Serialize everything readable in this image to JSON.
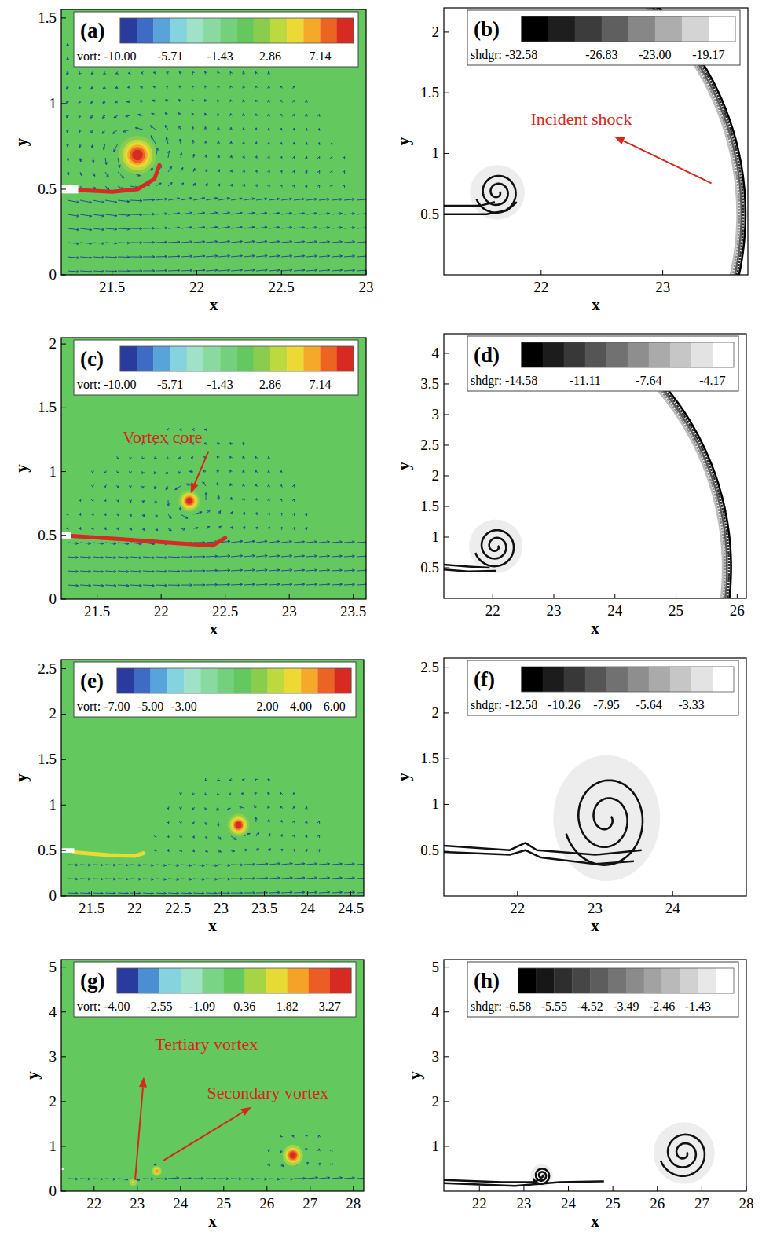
{
  "chart_data": [
    {
      "type": "contour",
      "title": "(a)",
      "xlabel": "x",
      "ylabel": "y",
      "xlim": [
        21.2,
        23
      ],
      "ylim": [
        0,
        1.55
      ],
      "xticks": [
        21.5,
        22,
        22.5,
        23
      ],
      "yticks": [
        0,
        0.5,
        1,
        1.5
      ],
      "colorbar": {
        "label": "vort:",
        "range": [
          -10,
          10
        ],
        "levels": 14,
        "colors": [
          "#2a3b9e",
          "#3e6cc4",
          "#57a3da",
          "#86d3e0",
          "#9fe2c8",
          "#8ad9a0",
          "#74d07c",
          "#63c95f",
          "#8acd4e",
          "#bcd93f",
          "#ecd934",
          "#f6a929",
          "#ec6424",
          "#d62a23"
        ],
        "ticks": [
          {
            "value": -10,
            "label": "-10.00"
          },
          -5.71,
          -1.43,
          2.86,
          7.14
        ]
      },
      "plate": {
        "x": 21.3,
        "y": 0.5
      },
      "shear_layer": {
        "peak": 9,
        "points": [
          [
            21.3,
            0.495
          ],
          [
            21.5,
            0.485
          ],
          [
            21.65,
            0.5
          ],
          [
            21.75,
            0.56
          ],
          [
            21.78,
            0.64
          ]
        ]
      },
      "vortices": [
        {
          "x": 21.65,
          "y": 0.7,
          "r": 0.08,
          "peak": 10
        }
      ],
      "annotations": []
    },
    {
      "type": "shadowgraph",
      "title": "(b)",
      "xlabel": "x",
      "ylabel": "y",
      "xlim": [
        21.2,
        23.7
      ],
      "ylim": [
        0,
        2.2
      ],
      "xticks": [
        22,
        23
      ],
      "yticks": [
        0.5,
        1,
        1.5,
        2
      ],
      "colorbar": {
        "label": "shdgr:",
        "range": [
          -32.58,
          -17.25
        ],
        "levels": 8,
        "colors": [
          "#000000",
          "#1e1e1e",
          "#3c3c3c",
          "#5f5f5f",
          "#878787",
          "#adadad",
          "#d4d4d4",
          "#ffffff"
        ],
        "ticks": [
          -32.58,
          -26.83,
          {
            "value": -23,
            "label": "-23.00"
          },
          -19.17
        ]
      },
      "shock": {
        "x0": 21.3,
        "y0": 0.5,
        "r": 2.38
      },
      "lines": [
        [
          [
            21.2,
            0.57
          ],
          [
            21.5,
            0.57
          ],
          [
            21.62,
            0.6
          ]
        ],
        [
          [
            21.2,
            0.5
          ],
          [
            21.55,
            0.5
          ],
          [
            21.72,
            0.53
          ],
          [
            21.8,
            0.6
          ]
        ]
      ],
      "vortices": [
        {
          "x": 21.64,
          "y": 0.68,
          "r": 0.18
        }
      ],
      "annotations": [
        {
          "text": "Incident shock",
          "x": 22.33,
          "y": 1.28,
          "arrow_from": [
            23.4,
            0.755
          ],
          "arrow_to": [
            22.6,
            1.14
          ]
        }
      ]
    },
    {
      "type": "contour",
      "title": "(c)",
      "xlabel": "x",
      "ylabel": "y",
      "xlim": [
        21.22,
        23.6
      ],
      "ylim": [
        0,
        2.05
      ],
      "xticks": [
        21.5,
        22,
        22.5,
        23,
        23.5
      ],
      "yticks": [
        0,
        0.5,
        1,
        1.5,
        2
      ],
      "colorbar": {
        "label": "vort:",
        "range": [
          -10,
          10
        ],
        "levels": 14,
        "colors": [
          "#2a3b9e",
          "#3e6cc4",
          "#57a3da",
          "#86d3e0",
          "#9fe2c8",
          "#8ad9a0",
          "#74d07c",
          "#63c95f",
          "#8acd4e",
          "#bcd93f",
          "#ecd934",
          "#f6a929",
          "#ec6424",
          "#d62a23"
        ],
        "ticks": [
          {
            "value": -10,
            "label": "-10.00"
          },
          -5.71,
          -1.43,
          2.86,
          7.14
        ]
      },
      "plate": {
        "x": 21.3,
        "y": 0.5
      },
      "shear_layer": {
        "peak": 9,
        "points": [
          [
            21.3,
            0.495
          ],
          [
            21.7,
            0.47
          ],
          [
            22.1,
            0.44
          ],
          [
            22.4,
            0.42
          ],
          [
            22.5,
            0.48
          ]
        ]
      },
      "vortices": [
        {
          "x": 22.22,
          "y": 0.77,
          "r": 0.06,
          "peak": 10
        }
      ],
      "annotations": [
        {
          "text": "Vortex core",
          "x": 22.01,
          "y": 1.27,
          "arrow_from": [
            22.37,
            1.16
          ],
          "arrow_to": [
            22.23,
            0.83
          ]
        }
      ]
    },
    {
      "type": "shadowgraph",
      "title": "(d)",
      "xlabel": "x",
      "ylabel": "y",
      "xlim": [
        21.2,
        26.15
      ],
      "ylim": [
        0,
        4.32
      ],
      "xticks": [
        22,
        23,
        24,
        25,
        26
      ],
      "yticks": [
        0.5,
        1,
        1.5,
        2,
        2.5,
        3,
        3.5,
        4
      ],
      "colorbar": {
        "label": "shdgr:",
        "range": [
          -14.58,
          -3.01
        ],
        "levels": 10,
        "colors": [
          "#000000",
          "#1c1c1c",
          "#383838",
          "#555555",
          "#717171",
          "#8e8e8e",
          "#aaaaaa",
          "#c6c6c6",
          "#e3e3e3",
          "#ffffff"
        ],
        "ticks": [
          -14.58,
          -11.11,
          -7.64,
          -4.17
        ]
      },
      "shock": {
        "x0": 21.3,
        "y0": 0.5,
        "r": 4.6,
        "ymax": 3.75
      },
      "lines": [
        [
          [
            21.2,
            0.55
          ],
          [
            21.6,
            0.52
          ],
          [
            21.95,
            0.5
          ]
        ],
        [
          [
            21.2,
            0.47
          ],
          [
            21.6,
            0.44
          ],
          [
            22.05,
            0.45
          ]
        ]
      ],
      "vortices": [
        {
          "x": 22.05,
          "y": 0.85,
          "r": 0.35
        }
      ],
      "annotations": []
    },
    {
      "type": "contour",
      "title": "(e)",
      "xlabel": "x",
      "ylabel": "y",
      "xlim": [
        21.15,
        24.65
      ],
      "ylim": [
        0,
        2.6
      ],
      "xticks": [
        21.5,
        22,
        22.5,
        23,
        23.5,
        24,
        24.5
      ],
      "yticks": [
        0,
        0.5,
        1,
        1.5,
        2,
        2.5
      ],
      "colorbar": {
        "label": "vort:",
        "range": [
          -7,
          7
        ],
        "levels": 14,
        "colors": [
          "#2a3b9e",
          "#3e6cc4",
          "#57a3da",
          "#86d3e0",
          "#9fe2c8",
          "#8ad9a0",
          "#74d07c",
          "#63c95f",
          "#8acd4e",
          "#bcd93f",
          "#ecd934",
          "#f6a929",
          "#ec6424",
          "#d62a23"
        ],
        "ticks": [
          {
            "value": -7,
            "label": "-7.00"
          },
          {
            "value": -5,
            "label": "-5.00"
          },
          {
            "value": -3,
            "label": "-3.00"
          },
          {
            "value": 2,
            "label": "2.00"
          },
          {
            "value": 4,
            "label": "4.00"
          },
          {
            "value": 6,
            "label": "6.00"
          }
        ]
      },
      "plate": {
        "x": 21.3,
        "y": 0.5
      },
      "shear_layer": {
        "peak": 3,
        "points": [
          [
            21.3,
            0.48
          ],
          [
            21.7,
            0.45
          ],
          [
            22.0,
            0.44
          ],
          [
            22.1,
            0.47
          ]
        ]
      },
      "vortices": [
        {
          "x": 23.2,
          "y": 0.78,
          "r": 0.09,
          "peak": 7
        }
      ],
      "annotations": []
    },
    {
      "type": "shadowgraph",
      "title": "(f)",
      "xlabel": "x",
      "ylabel": "y",
      "xlim": [
        21.05,
        24.95
      ],
      "ylim": [
        0,
        2.6
      ],
      "xticks": [
        22,
        23,
        24
      ],
      "yticks": [
        0.5,
        1,
        1.5,
        2,
        2.5
      ],
      "colorbar": {
        "label": "shdgr:",
        "range": [
          -12.58,
          -1.03
        ],
        "levels": 10,
        "colors": [
          "#000000",
          "#1c1c1c",
          "#383838",
          "#555555",
          "#717171",
          "#8e8e8e",
          "#aaaaaa",
          "#c6c6c6",
          "#e3e3e3",
          "#ffffff"
        ],
        "ticks": [
          -12.58,
          -10.26,
          -7.95,
          -5.64,
          -3.33
        ]
      },
      "lines": [
        [
          [
            21.05,
            0.55
          ],
          [
            21.9,
            0.5
          ],
          [
            22.1,
            0.58
          ],
          [
            22.25,
            0.5
          ],
          [
            23.0,
            0.45
          ],
          [
            23.6,
            0.5
          ]
        ],
        [
          [
            21.05,
            0.48
          ],
          [
            21.9,
            0.45
          ],
          [
            22.1,
            0.5
          ],
          [
            22.3,
            0.42
          ],
          [
            23.0,
            0.35
          ],
          [
            23.5,
            0.38
          ]
        ]
      ],
      "vortices": [
        {
          "x": 23.15,
          "y": 0.85,
          "r": 0.55
        }
      ],
      "annotations": []
    },
    {
      "type": "contour",
      "title": "(g)",
      "xlabel": "x",
      "ylabel": "y",
      "xlim": [
        21.24,
        28.24
      ],
      "ylim": [
        0,
        5.17
      ],
      "xticks": [
        22,
        23,
        24,
        25,
        26,
        27,
        28
      ],
      "yticks": [
        0,
        1,
        2,
        3,
        4,
        5
      ],
      "colorbar": {
        "label": "vort:",
        "range": [
          -4,
          4
        ],
        "levels": 11,
        "colors": [
          "#2a3b9e",
          "#4a8fd0",
          "#86d3e0",
          "#9fe2c8",
          "#7ad487",
          "#63c95f",
          "#a5d446",
          "#e6da35",
          "#f5a229",
          "#eb5d25",
          "#d62a23"
        ],
        "ticks": [
          {
            "value": -4,
            "label": "-4.00"
          },
          -2.55,
          -1.09,
          0.36,
          1.82,
          3.27
        ]
      },
      "plate": {
        "x": 21.3,
        "y": 0.5
      },
      "vortices": [
        {
          "x": 26.6,
          "y": 0.8,
          "r": 0.15,
          "peak": 4
        },
        {
          "x": 23.45,
          "y": 0.45,
          "r": 0.08,
          "peak": 2.5
        },
        {
          "x": 22.9,
          "y": 0.2,
          "r": 0.08,
          "peak": 1.2
        }
      ],
      "annotations": [
        {
          "text": "Tertiary vortex",
          "x": 24.6,
          "y": 3.28,
          "arrow_from": [
            22.95,
            0.25
          ],
          "arrow_to": [
            23.15,
            2.55
          ]
        },
        {
          "text": "Secondary vortex",
          "x": 26.02,
          "y": 2.19,
          "arrow_from": [
            23.6,
            0.68
          ],
          "arrow_to": [
            25.64,
            1.88
          ]
        }
      ]
    },
    {
      "type": "shadowgraph",
      "title": "(h)",
      "xlabel": "x",
      "ylabel": "y",
      "xlim": [
        21.2,
        28
      ],
      "ylim": [
        0,
        5.17
      ],
      "xticks": [
        22,
        23,
        24,
        25,
        26,
        27,
        28
      ],
      "yticks": [
        1,
        2,
        3,
        4,
        5
      ],
      "colorbar": {
        "label": "shdgr:",
        "range": [
          -6.58,
          -0.4
        ],
        "levels": 12,
        "colors": [
          "#000000",
          "#171717",
          "#2e2e2e",
          "#464646",
          "#5d5d5d",
          "#747474",
          "#8b8b8b",
          "#a2a2a2",
          "#b9b9b9",
          "#d1d1d1",
          "#e8e8e8",
          "#ffffff"
        ],
        "ticks": [
          -6.58,
          -5.55,
          -4.52,
          -3.49,
          -2.46,
          -1.43
        ]
      },
      "lines": [
        [
          [
            21.2,
            0.25
          ],
          [
            22.5,
            0.2
          ],
          [
            23.2,
            0.2
          ],
          [
            23.4,
            0.28
          ]
        ],
        [
          [
            21.2,
            0.18
          ],
          [
            22.8,
            0.12
          ],
          [
            23.8,
            0.2
          ],
          [
            24.8,
            0.22
          ]
        ]
      ],
      "vortices": [
        {
          "x": 23.4,
          "y": 0.35,
          "r": 0.2
        },
        {
          "x": 26.6,
          "y": 0.85,
          "r": 0.55
        }
      ],
      "annotations": []
    }
  ]
}
